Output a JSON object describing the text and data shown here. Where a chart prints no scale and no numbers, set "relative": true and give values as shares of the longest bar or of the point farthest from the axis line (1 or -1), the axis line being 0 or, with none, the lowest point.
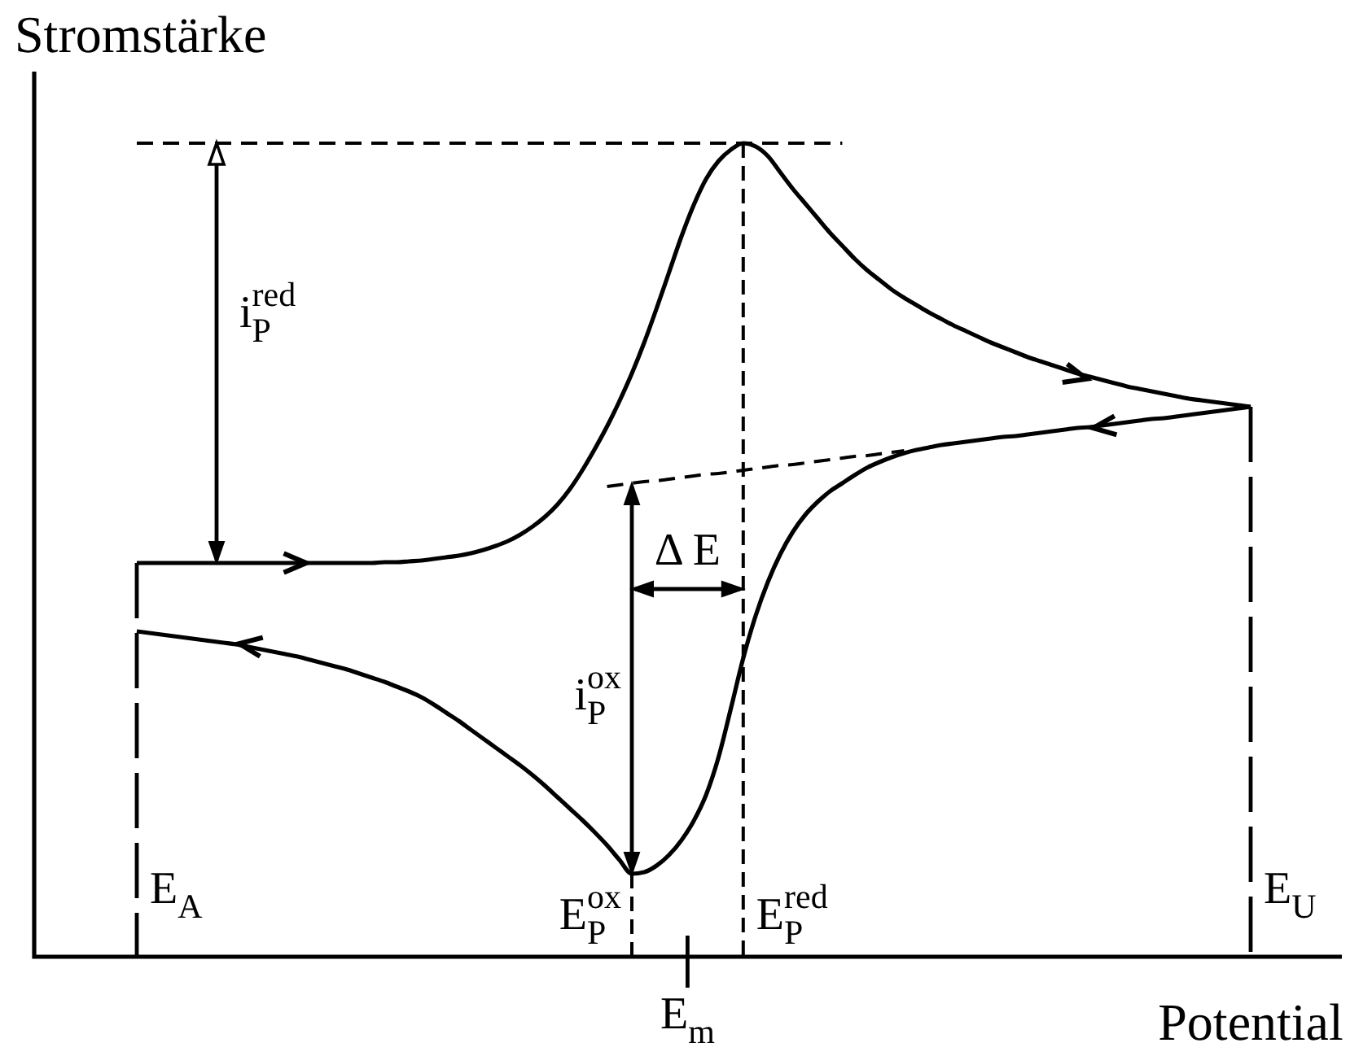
{
  "chart_data": {
    "type": "line",
    "xlabel": "Potential",
    "ylabel": "Stromstärke",
    "relative": true,
    "categories": [
      null,
      null,
      null,
      null,
      null,
      null,
      null,
      null,
      null,
      null,
      null,
      null,
      null,
      null,
      null,
      null,
      null,
      null,
      null,
      null,
      null,
      null,
      null,
      null,
      null,
      null,
      null,
      null,
      null,
      null,
      null,
      null,
      null,
      null,
      null,
      null,
      null,
      null,
      null,
      null,
      null,
      null,
      null,
      null,
      null,
      null,
      null,
      null,
      null,
      null,
      null,
      null,
      null,
      null,
      null,
      null,
      null,
      null,
      null,
      null,
      null,
      null,
      null,
      null,
      null,
      null,
      null,
      null,
      null,
      null,
      null,
      null,
      null,
      null,
      null,
      null,
      null,
      null,
      null,
      null,
      null,
      null,
      null,
      null,
      null,
      null,
      null,
      null,
      null,
      null,
      null
    ],
    "series": [
      {
        "color": "#000000",
        "values": [
          0.484,
          0.484,
          0.484,
          0.484,
          0.484,
          0.484,
          0.484,
          0.484,
          0.484,
          0.484,
          0.484,
          0.484,
          0.484,
          0.484,
          0.484,
          0.484,
          0.484,
          0.484,
          0.484,
          0.484,
          0.485,
          0.485,
          0.486,
          0.487,
          0.489,
          0.491,
          0.493,
          0.496,
          0.5,
          0.505,
          0.511,
          0.519,
          0.529,
          0.541,
          0.556,
          0.575,
          0.598,
          0.624,
          0.652,
          0.683,
          0.717,
          0.755,
          0.797,
          0.841,
          0.885,
          0.924,
          0.956,
          0.978,
          0.992,
          1.0,
          0.996,
          0.984,
          0.964,
          0.944,
          0.926,
          0.908,
          0.89,
          0.874,
          0.858,
          0.844,
          0.832,
          0.82,
          0.81,
          0.801,
          0.792,
          0.784,
          0.776,
          0.769,
          0.762,
          0.755,
          0.749,
          0.743,
          0.737,
          0.732,
          0.727,
          0.722,
          0.717,
          0.713,
          0.709,
          0.705,
          0.701,
          0.698,
          0.695,
          0.692,
          0.689,
          0.686,
          0.684,
          0.682,
          0.68,
          0.678,
          0.676
        ]
      },
      {
        "color": "#000000",
        "values": [
          0.4,
          0.398,
          0.396,
          0.394,
          0.392,
          0.39,
          0.388,
          0.386,
          0.384,
          0.381,
          0.378,
          0.375,
          0.372,
          0.369,
          0.365,
          0.361,
          0.357,
          0.353,
          0.348,
          0.343,
          0.338,
          0.332,
          0.326,
          0.319,
          0.31,
          0.3,
          0.29,
          0.279,
          0.268,
          0.257,
          0.246,
          0.235,
          0.223,
          0.21,
          0.196,
          0.182,
          0.168,
          0.153,
          0.137,
          0.119,
          0.102,
          0.104,
          0.112,
          0.125,
          0.143,
          0.167,
          0.199,
          0.245,
          0.305,
          0.367,
          0.419,
          0.461,
          0.495,
          0.522,
          0.543,
          0.559,
          0.572,
          0.582,
          0.592,
          0.601,
          0.608,
          0.614,
          0.619,
          0.623,
          0.626,
          0.629,
          0.631,
          0.633,
          0.635,
          0.637,
          0.639,
          0.64,
          0.642,
          0.644,
          0.646,
          0.648,
          0.65,
          0.651,
          0.653,
          0.655,
          0.657,
          0.659,
          0.661,
          0.662,
          0.664,
          0.666,
          0.668,
          0.67,
          0.672,
          0.674,
          0.676
        ]
      },
      {
        "color": "#000000",
        "line_style": "dashed",
        "values": [
          null,
          null,
          null,
          null,
          null,
          null,
          null,
          null,
          null,
          null,
          null,
          null,
          null,
          null,
          null,
          null,
          null,
          null,
          null,
          null,
          null,
          null,
          null,
          null,
          null,
          null,
          null,
          null,
          null,
          null,
          null,
          null,
          null,
          null,
          null,
          null,
          null,
          null,
          0.578,
          0.58,
          0.582,
          0.584,
          0.585,
          0.587,
          0.589,
          0.591,
          0.593,
          0.594,
          0.596,
          0.598,
          0.6,
          0.602,
          0.604,
          0.605,
          0.607,
          0.609,
          0.611,
          0.613,
          0.615,
          0.616,
          0.618,
          0.62,
          0.622,
          null,
          null,
          null,
          null,
          null,
          null,
          null,
          null,
          null,
          null,
          null,
          null,
          null,
          null,
          null,
          null,
          null,
          null,
          null,
          null,
          null,
          null,
          null,
          null,
          null,
          null,
          null,
          null
        ]
      },
      {
        "color": "#000000",
        "line_style": "dashed",
        "values": [
          1.0,
          1.0,
          1.0,
          1.0,
          1.0,
          1.0,
          1.0,
          1.0,
          1.0,
          1.0,
          1.0,
          1.0,
          1.0,
          1.0,
          1.0,
          1.0,
          1.0,
          1.0,
          1.0,
          1.0,
          1.0,
          1.0,
          1.0,
          1.0,
          1.0,
          1.0,
          1.0,
          1.0,
          1.0,
          1.0,
          1.0,
          1.0,
          1.0,
          1.0,
          1.0,
          1.0,
          1.0,
          1.0,
          1.0,
          1.0,
          1.0,
          1.0,
          1.0,
          1.0,
          1.0,
          1.0,
          1.0,
          1.0,
          1.0,
          1.0,
          1.0,
          1.0,
          1.0,
          1.0,
          1.0,
          1.0,
          1.0,
          1.0,
          null,
          null,
          null,
          null,
          null,
          null,
          null,
          null,
          null,
          null,
          null,
          null,
          null,
          null,
          null,
          null,
          null,
          null,
          null,
          null,
          null,
          null,
          null,
          null,
          null,
          null,
          null,
          null,
          null,
          null,
          null,
          null,
          null
        ]
      }
    ],
    "annotations": [
      "E$_{A}$",
      "E$_{P}$$^{ox}$",
      "E$_{m}$",
      "E$_{P}$$^{red}$",
      "E$_{U}$",
      "i$_{P}$$^{red}$",
      "i$_{P}$$^{ox}$",
      "Δ E"
    ]
  }
}
